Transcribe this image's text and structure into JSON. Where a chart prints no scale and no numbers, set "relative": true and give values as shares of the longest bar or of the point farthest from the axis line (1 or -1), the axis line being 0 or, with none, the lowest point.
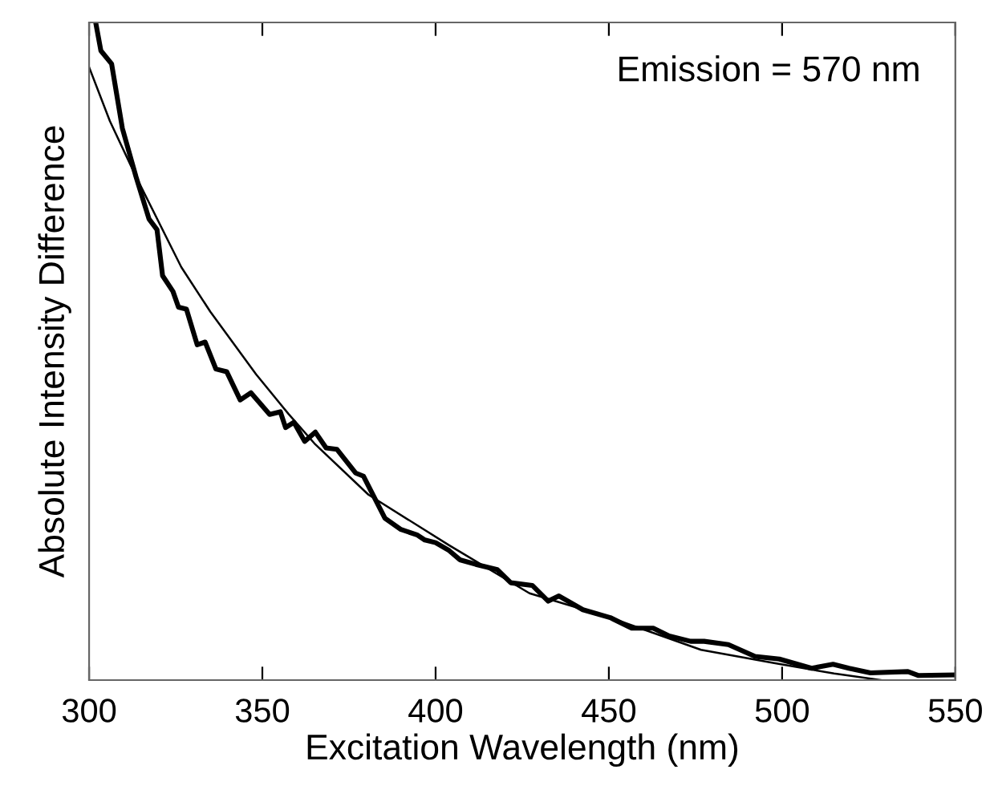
{
  "chart_data": {
    "type": "line",
    "relative": true,
    "xlabel": "Excitation Wavelength (nm)",
    "ylabel": "Absolute Intensity Difference",
    "xlim": [
      300,
      550
    ],
    "xticks": [
      300,
      350,
      400,
      450,
      500,
      550
    ],
    "grid": false,
    "legend": false,
    "marker": "none",
    "line_style": "solid",
    "annotations": [
      "Emission = 570 nm"
    ],
    "series": [
      {
        "color": "#000000",
        "x": [
          301.9,
          303.4,
          306.5,
          309.6,
          313.5,
          317.3,
          319.6,
          321.2,
          324.2,
          325.8,
          328.1,
          331.2,
          333.5,
          336.6,
          339.7,
          343.6,
          346.7,
          352.1,
          355.2,
          356.7,
          359.1,
          362.2,
          365.3,
          368.4,
          371.5,
          376.9,
          379.2,
          381.5,
          385.4,
          390.0,
          394.6,
          396.9,
          400.0,
          403.9,
          407.0,
          411.6,
          417.8,
          421.7,
          427.9,
          432.5,
          435.6,
          442.5,
          450.4,
          456.6,
          462.8,
          467.4,
          473.6,
          477.5,
          484.5,
          492.2,
          499.2,
          508.5,
          514.7,
          519.3,
          525.5,
          536.3,
          539.4,
          550.0
        ],
        "values": [
          1.0,
          0.957,
          0.937,
          0.839,
          0.766,
          0.701,
          0.685,
          0.615,
          0.591,
          0.567,
          0.564,
          0.51,
          0.514,
          0.473,
          0.469,
          0.426,
          0.437,
          0.404,
          0.408,
          0.384,
          0.392,
          0.363,
          0.377,
          0.353,
          0.351,
          0.315,
          0.31,
          0.286,
          0.246,
          0.229,
          0.221,
          0.213,
          0.209,
          0.197,
          0.183,
          0.176,
          0.168,
          0.148,
          0.144,
          0.12,
          0.128,
          0.107,
          0.095,
          0.079,
          0.079,
          0.067,
          0.059,
          0.059,
          0.054,
          0.036,
          0.032,
          0.018,
          0.024,
          0.018,
          0.011,
          0.013,
          0.007,
          0.008
        ]
      },
      {
        "color": "#000000",
        "x": [
          300,
          306,
          313.5,
          326.6,
          335,
          348.2,
          357.5,
          365,
          380.6,
          403.9,
          427.1,
          450.4,
          476.6,
          497.7,
          515,
          528.6
        ],
        "values": [
          0.932,
          0.85,
          0.766,
          0.628,
          0.56,
          0.465,
          0.405,
          0.36,
          0.282,
          0.205,
          0.132,
          0.095,
          0.046,
          0.026,
          0.01,
          0.0
        ]
      }
    ]
  }
}
